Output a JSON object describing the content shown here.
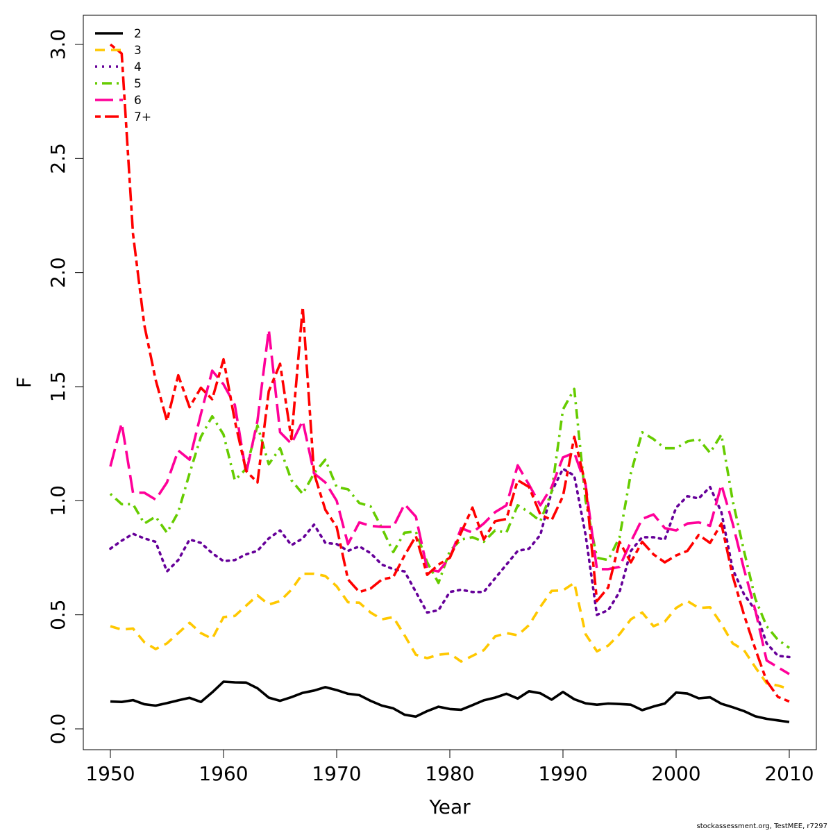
{
  "chart_data": {
    "type": "line",
    "title": "",
    "xlabel": "Year",
    "ylabel": "F",
    "xlim": [
      1950,
      2010
    ],
    "ylim": [
      0,
      3
    ],
    "x_ticks": [
      1950,
      1960,
      1970,
      1980,
      1990,
      2000,
      2010
    ],
    "y_ticks": [
      0.0,
      0.5,
      1.0,
      1.5,
      2.0,
      2.5,
      3.0
    ],
    "y_tick_labels": [
      "0.0",
      "0.5",
      "1.0",
      "1.5",
      "2.0",
      "2.5",
      "3.0"
    ],
    "grid": false,
    "legend_position": "top-left",
    "x": [
      1950,
      1951,
      1952,
      1953,
      1954,
      1955,
      1956,
      1957,
      1958,
      1959,
      1960,
      1961,
      1962,
      1963,
      1964,
      1965,
      1966,
      1967,
      1968,
      1969,
      1970,
      1971,
      1972,
      1973,
      1974,
      1975,
      1976,
      1977,
      1978,
      1979,
      1980,
      1981,
      1982,
      1983,
      1984,
      1985,
      1986,
      1987,
      1988,
      1989,
      1990,
      1991,
      1992,
      1993,
      1994,
      1995,
      1996,
      1997,
      1998,
      1999,
      2000,
      2001,
      2002,
      2003,
      2004,
      2005,
      2006,
      2007,
      2008,
      2009,
      2010
    ],
    "series": [
      {
        "name": "2",
        "color": "#000000",
        "dash": "solid",
        "values": [
          0.12,
          0.118,
          0.126,
          0.108,
          0.102,
          0.113,
          0.125,
          0.136,
          0.118,
          0.16,
          0.207,
          0.204,
          0.203,
          0.178,
          0.137,
          0.123,
          0.139,
          0.158,
          0.168,
          0.183,
          0.17,
          0.154,
          0.148,
          0.123,
          0.102,
          0.09,
          0.062,
          0.054,
          0.078,
          0.097,
          0.087,
          0.084,
          0.104,
          0.125,
          0.137,
          0.154,
          0.133,
          0.165,
          0.156,
          0.128,
          0.162,
          0.13,
          0.112,
          0.106,
          0.111,
          0.109,
          0.106,
          0.082,
          0.098,
          0.111,
          0.159,
          0.155,
          0.134,
          0.138,
          0.11,
          0.095,
          0.078,
          0.055,
          0.044,
          0.037,
          0.03
        ]
      },
      {
        "name": "3",
        "color": "#ffc800",
        "dash": "dashed",
        "values": [
          0.45,
          0.435,
          0.44,
          0.38,
          0.35,
          0.375,
          0.42,
          0.465,
          0.42,
          0.395,
          0.49,
          0.495,
          0.54,
          0.585,
          0.545,
          0.56,
          0.61,
          0.68,
          0.68,
          0.67,
          0.625,
          0.555,
          0.553,
          0.51,
          0.48,
          0.49,
          0.41,
          0.325,
          0.31,
          0.325,
          0.33,
          0.295,
          0.32,
          0.345,
          0.405,
          0.42,
          0.41,
          0.455,
          0.535,
          0.605,
          0.607,
          0.64,
          0.415,
          0.34,
          0.365,
          0.415,
          0.48,
          0.51,
          0.45,
          0.47,
          0.53,
          0.56,
          0.53,
          0.533,
          0.46,
          0.375,
          0.345,
          0.27,
          0.2,
          0.19,
          0.175
        ]
      },
      {
        "name": "4",
        "color": "#660099",
        "dash": "dotted",
        "values": [
          0.79,
          0.825,
          0.855,
          0.835,
          0.82,
          0.69,
          0.74,
          0.83,
          0.815,
          0.77,
          0.735,
          0.74,
          0.765,
          0.78,
          0.835,
          0.87,
          0.805,
          0.835,
          0.895,
          0.815,
          0.81,
          0.78,
          0.8,
          0.77,
          0.72,
          0.7,
          0.69,
          0.6,
          0.51,
          0.52,
          0.6,
          0.61,
          0.6,
          0.6,
          0.66,
          0.72,
          0.78,
          0.79,
          0.85,
          1.04,
          1.14,
          1.11,
          0.85,
          0.5,
          0.52,
          0.6,
          0.78,
          0.84,
          0.84,
          0.83,
          0.97,
          1.02,
          1.01,
          1.06,
          0.95,
          0.7,
          0.59,
          0.52,
          0.375,
          0.32,
          0.315
        ]
      },
      {
        "name": "5",
        "color": "#66cc00",
        "dash": "dashdot",
        "values": [
          1.03,
          0.985,
          0.985,
          0.9,
          0.93,
          0.86,
          0.95,
          1.12,
          1.28,
          1.37,
          1.29,
          1.09,
          1.14,
          1.33,
          1.16,
          1.23,
          1.09,
          1.03,
          1.12,
          1.18,
          1.06,
          1.05,
          0.99,
          0.975,
          0.88,
          0.775,
          0.86,
          0.865,
          0.73,
          0.64,
          0.78,
          0.83,
          0.84,
          0.82,
          0.87,
          0.86,
          0.98,
          0.95,
          0.91,
          1.04,
          1.4,
          1.49,
          1.0,
          0.75,
          0.74,
          0.84,
          1.12,
          1.3,
          1.27,
          1.23,
          1.23,
          1.26,
          1.27,
          1.21,
          1.29,
          1.0,
          0.78,
          0.57,
          0.45,
          0.39,
          0.355
        ]
      },
      {
        "name": "6",
        "color": "#ff0099",
        "dash": "longdash",
        "values": [
          1.15,
          1.34,
          1.035,
          1.035,
          1.005,
          1.08,
          1.22,
          1.18,
          1.38,
          1.57,
          1.51,
          1.42,
          1.12,
          1.35,
          1.75,
          1.3,
          1.25,
          1.35,
          1.12,
          1.08,
          1.0,
          0.81,
          0.905,
          0.89,
          0.885,
          0.885,
          0.985,
          0.93,
          0.7,
          0.69,
          0.75,
          0.88,
          0.86,
          0.9,
          0.95,
          0.98,
          1.155,
          1.07,
          0.98,
          1.06,
          1.19,
          1.21,
          1.07,
          0.7,
          0.7,
          0.71,
          0.82,
          0.92,
          0.94,
          0.88,
          0.87,
          0.9,
          0.905,
          0.89,
          1.07,
          0.9,
          0.7,
          0.52,
          0.3,
          0.27,
          0.24
        ]
      },
      {
        "name": "7+",
        "color": "#ff0000",
        "dash": "twodash",
        "values": [
          3.0,
          2.96,
          2.17,
          1.77,
          1.53,
          1.35,
          1.55,
          1.41,
          1.495,
          1.445,
          1.62,
          1.35,
          1.13,
          1.08,
          1.48,
          1.6,
          1.27,
          1.85,
          1.12,
          0.96,
          0.885,
          0.655,
          0.6,
          0.615,
          0.655,
          0.665,
          0.76,
          0.845,
          0.675,
          0.72,
          0.75,
          0.86,
          0.97,
          0.83,
          0.91,
          0.92,
          1.09,
          1.06,
          0.94,
          0.915,
          1.02,
          1.28,
          1.07,
          0.56,
          0.62,
          0.82,
          0.73,
          0.82,
          0.765,
          0.73,
          0.76,
          0.78,
          0.85,
          0.815,
          0.9,
          0.67,
          0.5,
          0.35,
          0.21,
          0.14,
          0.12
        ]
      }
    ]
  },
  "credit": "stockassessment.org, TestMEE, r7297"
}
